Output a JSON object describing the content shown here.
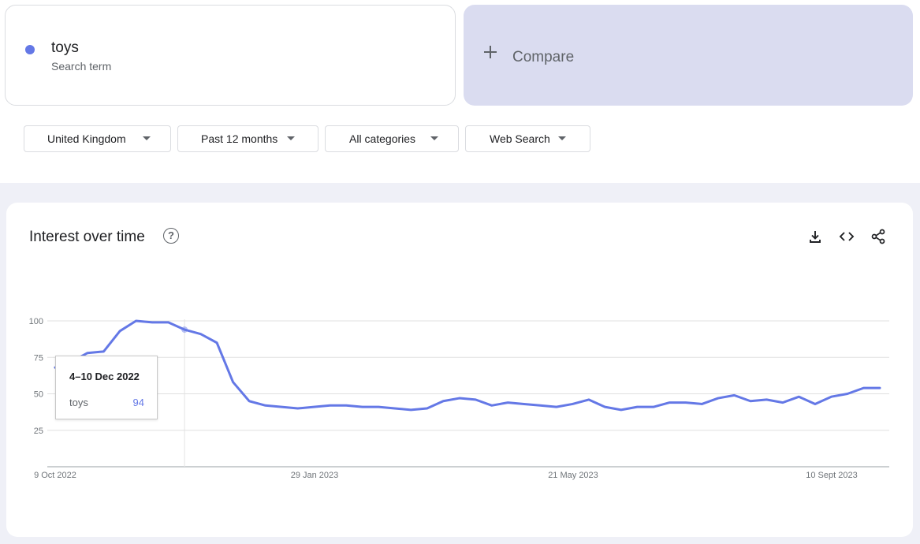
{
  "search": {
    "term": "toys",
    "term_type": "Search term",
    "term_color": "#6478e6",
    "compare_label": "Compare",
    "compare_icon": "plus-icon"
  },
  "filters": [
    {
      "label": "United Kingdom",
      "icon": "caret-down-icon"
    },
    {
      "label": "Past 12 months",
      "icon": "caret-down-icon"
    },
    {
      "label": "All categories",
      "icon": "caret-down-icon"
    },
    {
      "label": "Web Search",
      "icon": "caret-down-icon"
    }
  ],
  "card": {
    "title": "Interest over time",
    "help_icon": "help-icon",
    "help_glyph": "?",
    "actions": [
      "download-icon",
      "embed-code-icon",
      "share-icon"
    ]
  },
  "tooltip": {
    "date": "4–10 Dec 2022",
    "term": "toys",
    "value": "94"
  },
  "chart_data": {
    "type": "line",
    "title": "",
    "xlabel": "",
    "ylabel": "",
    "ylim": [
      0,
      100
    ],
    "yticks": [
      "25",
      "50",
      "75",
      "100"
    ],
    "xticks": [
      "9 Oct 2022",
      "29 Jan 2023",
      "21 May 2023",
      "10 Sept 2023"
    ],
    "grid": true,
    "line_color": "#6478e6",
    "series": [
      {
        "name": "toys",
        "values": [
          68,
          72,
          78,
          79,
          93,
          100,
          99,
          99,
          94,
          91,
          85,
          58,
          45,
          42,
          41,
          40,
          41,
          42,
          42,
          41,
          41,
          40,
          39,
          40,
          45,
          47,
          46,
          42,
          44,
          43,
          42,
          41,
          43,
          46,
          41,
          39,
          41,
          41,
          44,
          44,
          43,
          47,
          49,
          45,
          46,
          44,
          48,
          43,
          48,
          50,
          54,
          54
        ]
      }
    ]
  }
}
